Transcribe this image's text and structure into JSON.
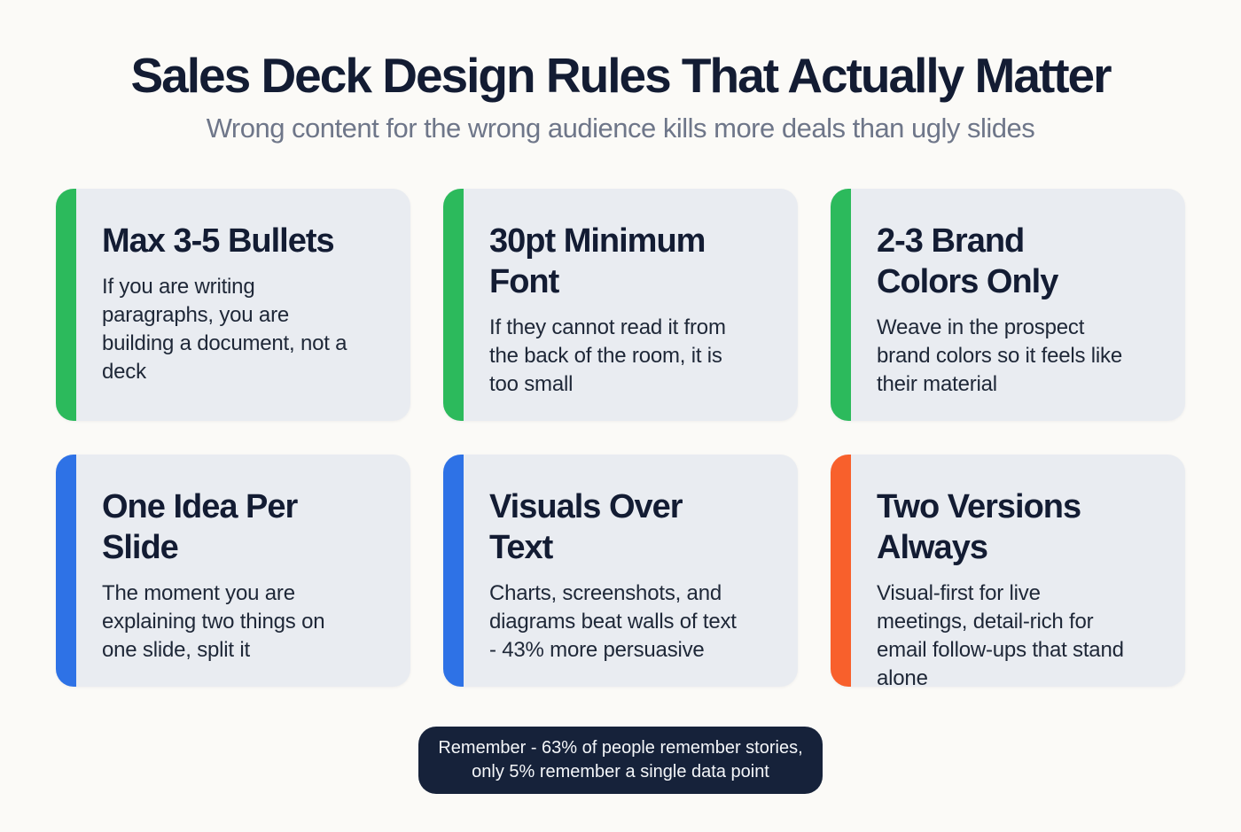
{
  "page": {
    "title": "Sales Deck Design Rules That Actually Matter",
    "subtitle": "Wrong content for the wrong audience kills more deals than ugly slides"
  },
  "colors": {
    "background": "#fbfaf7",
    "card_background": "#e9ecf1",
    "heading_text": "#131c33",
    "body_text": "#1e2737",
    "subtitle_text": "#6e7689",
    "accent_green": "#2cba5c",
    "accent_blue": "#2e72e6",
    "accent_orange": "#f8602c",
    "badge_background": "#16223a",
    "badge_text": "#f4f6f9"
  },
  "cards": [
    {
      "accent": "green",
      "accent_color": "#2cba5c",
      "title": "Max 3-5 Bullets",
      "title_lines": [
        "Max 3-5 Bullets"
      ],
      "body": "If you are writing paragraphs, you are building a document, not a deck",
      "body_lines": [
        "If you are writing",
        "paragraphs, you are",
        "building a document, not a",
        "deck"
      ]
    },
    {
      "accent": "green",
      "accent_color": "#2cba5c",
      "title": "30pt Minimum Font",
      "title_lines": [
        "30pt Minimum",
        "Font"
      ],
      "body": "If they cannot read it from the back of the room, it is too small",
      "body_lines": [
        "If they cannot read it from",
        "the back of the room, it is",
        "too small"
      ]
    },
    {
      "accent": "green",
      "accent_color": "#2cba5c",
      "title": "2-3 Brand Colors Only",
      "title_lines": [
        "2-3 Brand",
        "Colors Only"
      ],
      "body": "Weave in the prospect brand colors so it feels like their material",
      "body_lines": [
        "Weave in the prospect",
        "brand colors so it feels like",
        "their material"
      ]
    },
    {
      "accent": "blue",
      "accent_color": "#2e72e6",
      "title": "One Idea Per Slide",
      "title_lines": [
        "One Idea Per",
        "Slide"
      ],
      "body": "The moment you are explaining two things on one slide, split it",
      "body_lines": [
        "The moment you are",
        "explaining two things on",
        "one slide, split it"
      ]
    },
    {
      "accent": "blue",
      "accent_color": "#2e72e6",
      "title": "Visuals Over Text",
      "title_lines": [
        "Visuals Over",
        "Text"
      ],
      "body": "Charts, screenshots, and diagrams beat walls of text - 43% more persuasive",
      "body_lines": [
        "Charts, screenshots, and",
        "diagrams beat walls of text",
        "- 43% more persuasive"
      ]
    },
    {
      "accent": "orange",
      "accent_color": "#f8602c",
      "title": "Two Versions Always",
      "title_lines": [
        "Two Versions",
        "Always"
      ],
      "body": "Visual-first for live meetings, detail-rich for email follow-ups that stand alone",
      "body_lines": [
        "Visual-first for live",
        "meetings, detail-rich for",
        "email follow-ups that stand",
        "alone"
      ]
    }
  ],
  "footer": {
    "badge_text": "Remember - 63% of people remember stories, only 5% remember a single data point",
    "badge_lines": [
      "Remember - 63% of people remember stories,",
      "only 5% remember a single data point"
    ]
  }
}
